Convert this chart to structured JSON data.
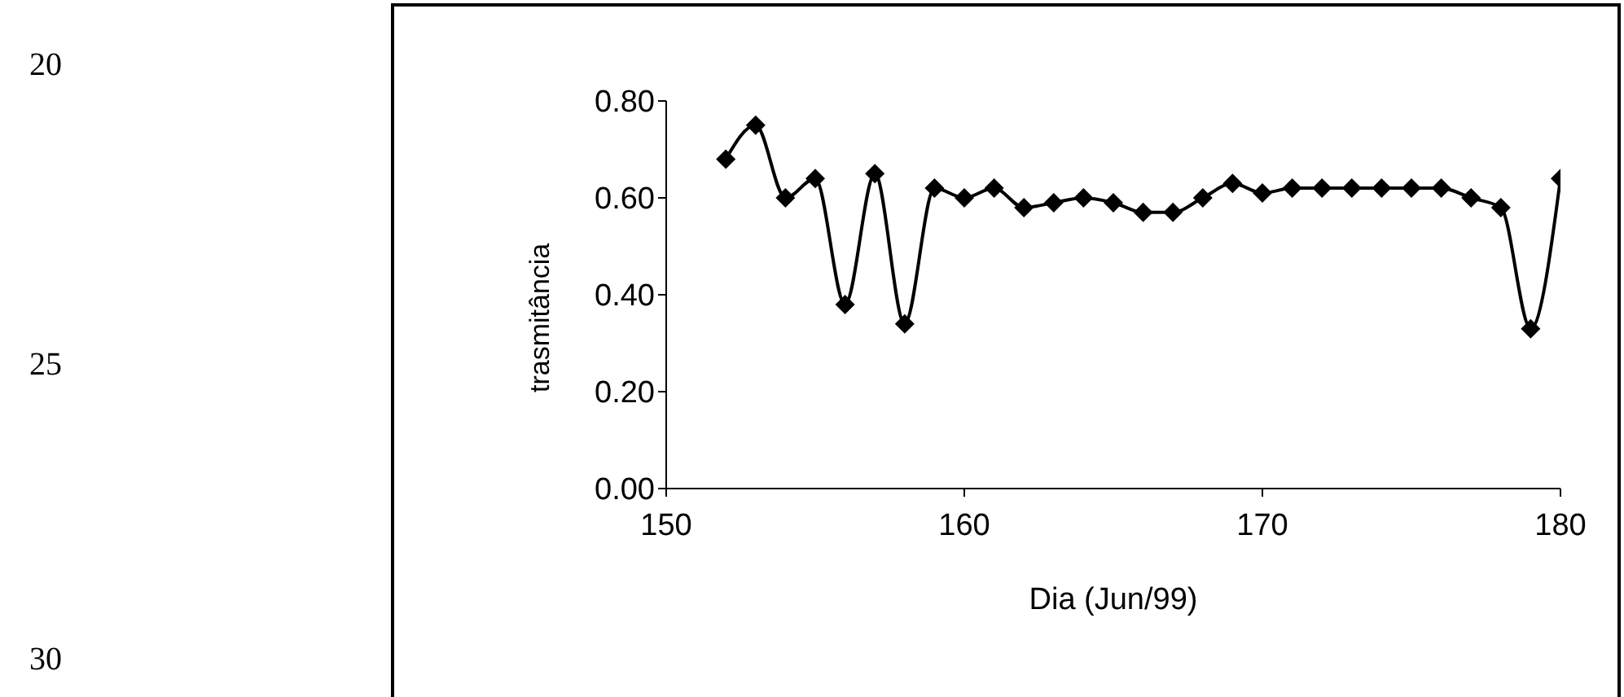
{
  "chart_data": {
    "type": "line",
    "xlabel": "Dia (Jun/99)",
    "ylabel": "trasmitância",
    "x": [
      152,
      153,
      154,
      155,
      156,
      157,
      158,
      159,
      160,
      161,
      162,
      163,
      164,
      165,
      166,
      167,
      168,
      169,
      170,
      171,
      172,
      173,
      174,
      175,
      176,
      177,
      178,
      179,
      180
    ],
    "series": [
      {
        "color": "#000000",
        "values": [
          0.68,
          0.75,
          0.6,
          0.64,
          0.38,
          0.65,
          0.34,
          0.62,
          0.6,
          0.62,
          0.58,
          0.59,
          0.6,
          0.59,
          0.57,
          0.57,
          0.6,
          0.63,
          0.61,
          0.62,
          0.62,
          0.62,
          0.62,
          0.62,
          0.62,
          0.6,
          0.58,
          0.33,
          0.64
        ]
      }
    ],
    "xlim": [
      150,
      180
    ],
    "xticks": [
      150,
      160,
      170,
      180
    ],
    "ylim": [
      0,
      0.8
    ],
    "yticks": [
      {
        "value": 0,
        "label": "0.00"
      },
      {
        "value": 0.2,
        "label": "0.20"
      },
      {
        "value": 0.4,
        "label": "0.40"
      },
      {
        "value": 0.6,
        "label": "0.60"
      },
      {
        "value": 0.8,
        "label": "0.80"
      }
    ],
    "marker": "diamond",
    "line_style": "solid",
    "grid": false,
    "legend": false,
    "annotations": [
      "20",
      "25",
      "30"
    ]
  }
}
